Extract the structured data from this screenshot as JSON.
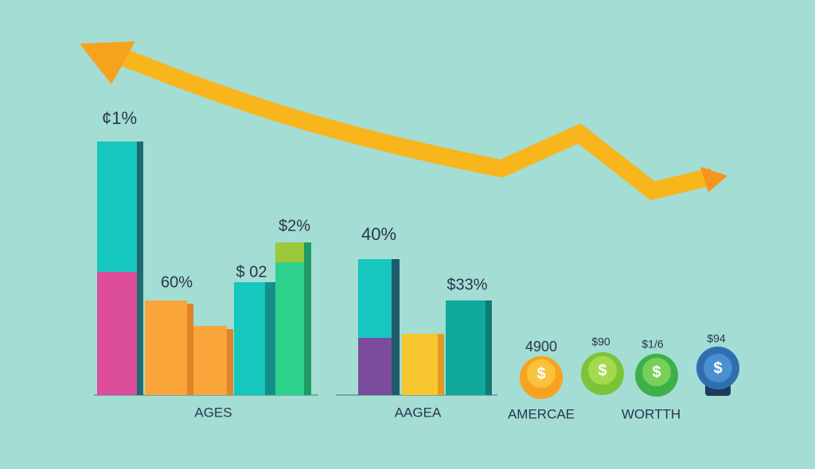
{
  "labels": [
    "¢1%",
    "60%",
    "$ 02",
    "$2%",
    "40%",
    "$33%",
    "4900",
    "$90",
    "$1/6",
    "$94"
  ],
  "captions": [
    "AGES",
    "AAGEA",
    "AMERCAE",
    "WORTTH"
  ],
  "coins": [
    "$",
    "$",
    "$",
    "$"
  ]
}
